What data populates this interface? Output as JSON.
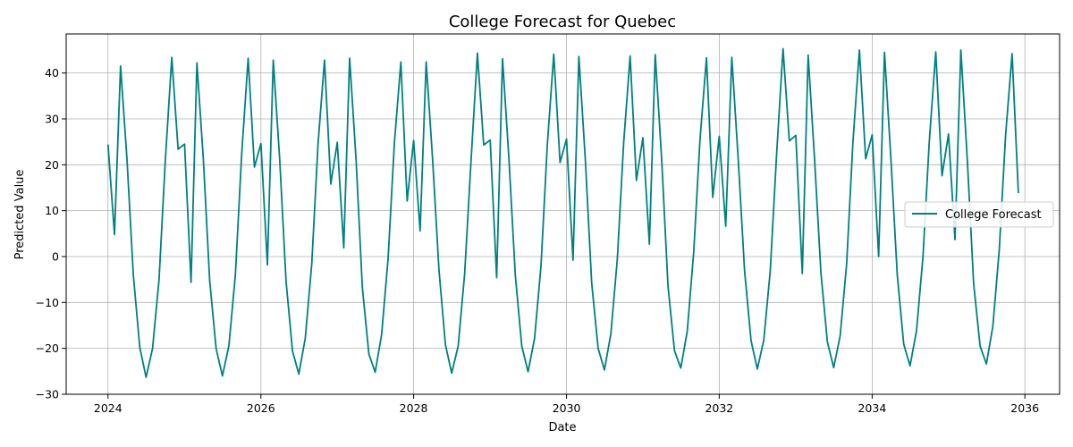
{
  "chart_data": {
    "type": "line",
    "title": "College Forecast for Quebec",
    "xlabel": "Date",
    "ylabel": "Predicted Value",
    "xlim": [
      "2023-06-15",
      "2036-06-15"
    ],
    "ylim": [
      -30,
      48.5
    ],
    "x_ticks": [
      "2024",
      "2026",
      "2028",
      "2030",
      "2032",
      "2034",
      "2036"
    ],
    "y_ticks": [
      "−30",
      "−20",
      "−10",
      "0",
      "10",
      "20",
      "30",
      "40"
    ],
    "grid": true,
    "legend_position": "center-right",
    "colors": {
      "line": "#008080",
      "grid": "#b0b0b0"
    },
    "series": [
      {
        "name": "College Forecast",
        "start_month": "2024-01",
        "frequency": "monthly",
        "values": [
          24.4,
          4.8,
          41.5,
          21.0,
          -4.0,
          -19.8,
          -26.3,
          -20.0,
          -5.0,
          21.0,
          43.4,
          23.4,
          24.5,
          -5.6,
          42.2,
          21.0,
          -5.2,
          -20.1,
          -26.0,
          -19.4,
          -3.9,
          22.3,
          43.2,
          19.5,
          24.6,
          -1.8,
          42.8,
          21.0,
          -5.3,
          -20.6,
          -25.6,
          -17.8,
          -1.6,
          24.5,
          42.8,
          15.8,
          24.9,
          1.9,
          43.2,
          21.0,
          -6.8,
          -21.2,
          -25.2,
          -17.0,
          -0.4,
          24.7,
          42.4,
          12.1,
          25.3,
          5.6,
          42.4,
          21.0,
          -2.8,
          -19.2,
          -25.4,
          -19.5,
          -3.7,
          20.5,
          44.3,
          24.3,
          25.4,
          -4.6,
          43.1,
          21.0,
          -4.0,
          -19.5,
          -25.1,
          -17.9,
          -2.0,
          24.3,
          44.1,
          20.5,
          25.6,
          -0.8,
          43.6,
          21.0,
          -5.6,
          -20.0,
          -24.7,
          -16.8,
          -0.4,
          24.7,
          43.7,
          16.6,
          25.9,
          2.7,
          44.0,
          21.0,
          -6.4,
          -20.5,
          -24.3,
          -16.3,
          1.0,
          25.5,
          43.3,
          12.9,
          26.2,
          6.6,
          43.4,
          21.0,
          -3.0,
          -18.3,
          -24.5,
          -18.2,
          -3.0,
          22.1,
          45.3,
          25.2,
          26.4,
          -3.7,
          43.9,
          21.0,
          -3.5,
          -18.6,
          -24.2,
          -17.3,
          -1.6,
          24.9,
          45.0,
          21.3,
          26.5,
          0.0,
          44.5,
          21.0,
          -4.0,
          -19.1,
          -23.8,
          -16.2,
          0.0,
          25.0,
          44.6,
          17.6,
          26.7,
          3.7,
          45.0,
          21.0,
          -5.8,
          -19.5,
          -23.4,
          -15.2,
          1.7,
          26.5,
          44.2,
          13.8
        ]
      }
    ]
  }
}
